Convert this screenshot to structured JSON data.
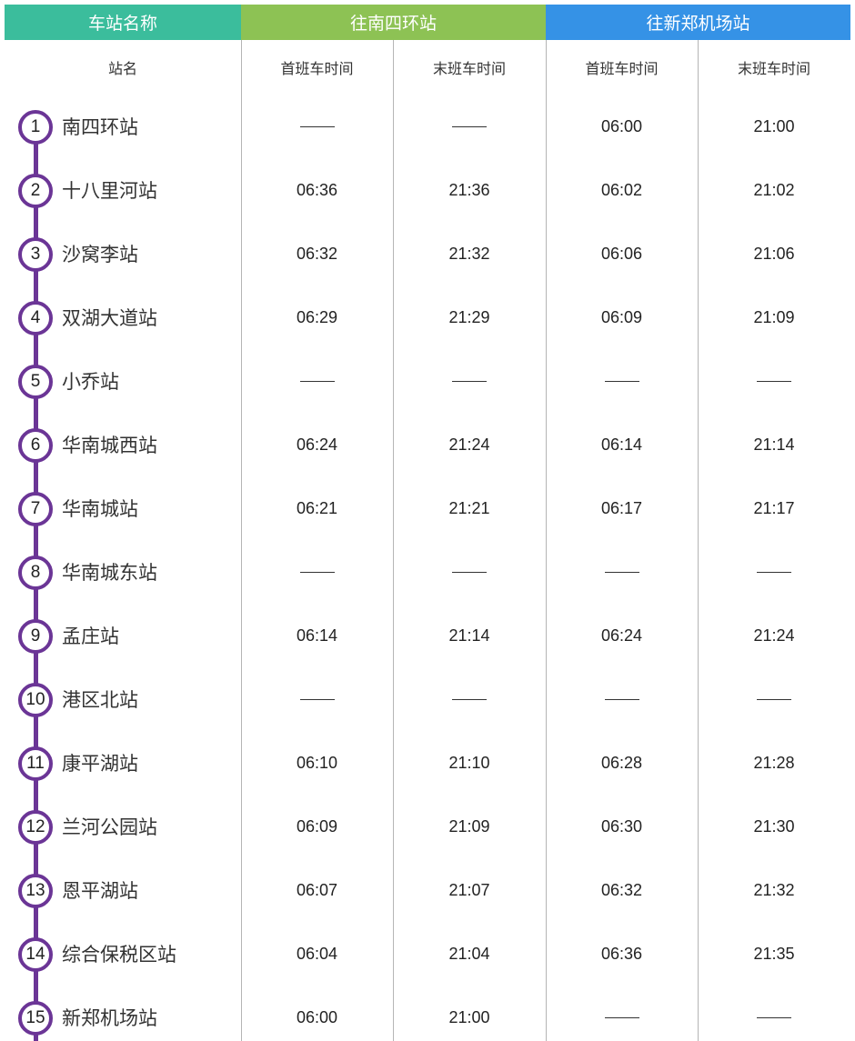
{
  "header": {
    "station_col": "车站名称",
    "dir1": "往南四环站",
    "dir2": "往新郑机场站"
  },
  "colors": {
    "station_header": "#3bbd9c",
    "dir1_header": "#8dc254",
    "dir2_header": "#3592e6",
    "line": "#6b3596"
  },
  "subheader": {
    "name": "站名",
    "first1": "首班车时间",
    "last1": "末班车时间",
    "first2": "首班车时间",
    "last2": "末班车时间"
  },
  "dash": "——",
  "stations": [
    {
      "num": "1",
      "name": "南四环站",
      "t": [
        "——",
        "——",
        "06:00",
        "21:00"
      ]
    },
    {
      "num": "2",
      "name": "十八里河站",
      "t": [
        "06:36",
        "21:36",
        "06:02",
        "21:02"
      ]
    },
    {
      "num": "3",
      "name": "沙窝李站",
      "t": [
        "06:32",
        "21:32",
        "06:06",
        "21:06"
      ]
    },
    {
      "num": "4",
      "name": "双湖大道站",
      "t": [
        "06:29",
        "21:29",
        "06:09",
        "21:09"
      ]
    },
    {
      "num": "5",
      "name": "小乔站",
      "t": [
        "——",
        "——",
        "——",
        "——"
      ]
    },
    {
      "num": "6",
      "name": "华南城西站",
      "t": [
        "06:24",
        "21:24",
        "06:14",
        "21:14"
      ]
    },
    {
      "num": "7",
      "name": "华南城站",
      "t": [
        "06:21",
        "21:21",
        "06:17",
        "21:17"
      ]
    },
    {
      "num": "8",
      "name": "华南城东站",
      "t": [
        "——",
        "——",
        "——",
        "——"
      ]
    },
    {
      "num": "9",
      "name": "孟庄站",
      "t": [
        "06:14",
        "21:14",
        "06:24",
        "21:24"
      ]
    },
    {
      "num": "10",
      "name": "港区北站",
      "t": [
        "——",
        "——",
        "——",
        "——"
      ]
    },
    {
      "num": "11",
      "name": "康平湖站",
      "t": [
        "06:10",
        "21:10",
        "06:28",
        "21:28"
      ]
    },
    {
      "num": "12",
      "name": "兰河公园站",
      "t": [
        "06:09",
        "21:09",
        "06:30",
        "21:30"
      ]
    },
    {
      "num": "13",
      "name": "恩平湖站",
      "t": [
        "06:07",
        "21:07",
        "06:32",
        "21:32"
      ]
    },
    {
      "num": "14",
      "name": "综合保税区站",
      "t": [
        "06:04",
        "21:04",
        "06:36",
        "21:35"
      ]
    },
    {
      "num": "15",
      "name": "新郑机场站",
      "t": [
        "06:00",
        "21:00",
        "——",
        "——"
      ]
    }
  ]
}
